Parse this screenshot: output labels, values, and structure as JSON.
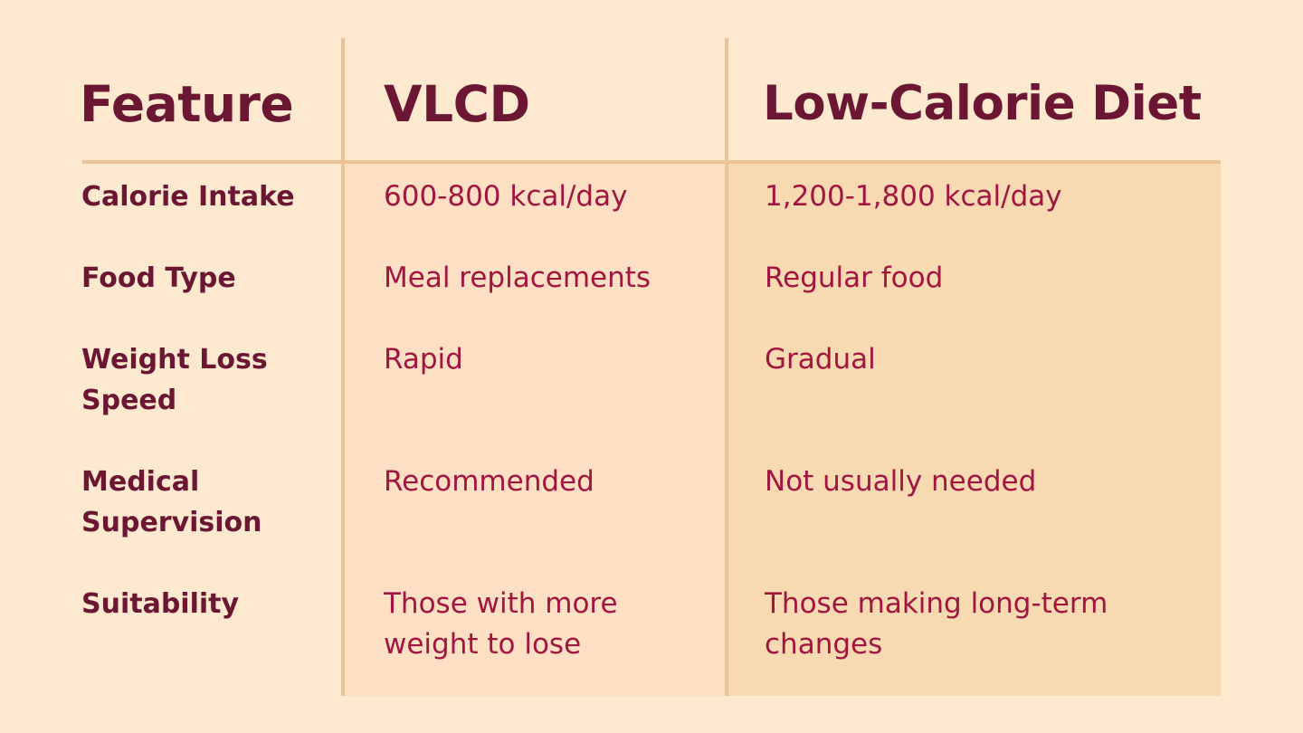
{
  "table": {
    "headers": [
      "Feature",
      "VLCD",
      "Low-Calorie Diet"
    ],
    "rows": [
      {
        "feature": "Calorie Intake",
        "vlcd": "600-800 kcal/day",
        "low_calorie": "1,200-1,800 kcal/day"
      },
      {
        "feature": "Food Type",
        "vlcd": "Meal replacements",
        "low_calorie": "Regular food"
      },
      {
        "feature": "Weight Loss Speed",
        "vlcd": "Rapid",
        "low_calorie": "Gradual"
      },
      {
        "feature": "Medical Supervision",
        "vlcd": "Recommended",
        "low_calorie": "Not usually needed"
      },
      {
        "feature": "Suitability",
        "vlcd": "Those with more weight to lose",
        "low_calorie": "Those making long-term changes"
      }
    ]
  },
  "colors": {
    "background": "#fde9cf",
    "vlcd_column": "#fddfc4",
    "low_calorie_column": "#f7d9b2",
    "divider": "#ebc495",
    "header_text": "#6b1632",
    "value_text": "#a11640"
  }
}
